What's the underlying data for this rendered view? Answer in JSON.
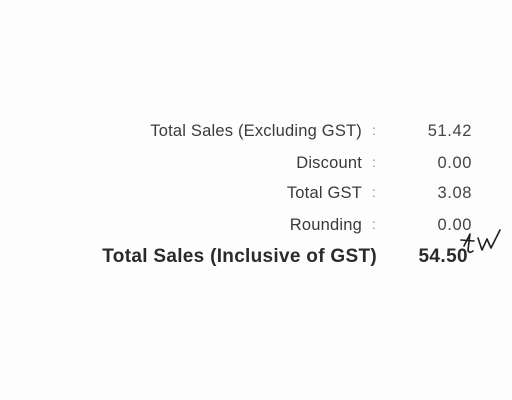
{
  "receipt": {
    "rows": [
      {
        "label": "Total Sales (Excluding GST)",
        "separator": ":",
        "value": "51.42"
      },
      {
        "label": "Discount",
        "separator": ":",
        "value": "0.00"
      },
      {
        "label": "Total GST",
        "separator": ":",
        "value": "3.08"
      },
      {
        "label": "Rounding",
        "separator": ":",
        "value": "0.00"
      }
    ],
    "total": {
      "label": "Total Sales (Inclusive of GST)",
      "value": "54.50"
    },
    "handwritten_initials": "tw"
  },
  "colors": {
    "ink": "#3a3a3a",
    "paper": "#fdfdfd"
  }
}
